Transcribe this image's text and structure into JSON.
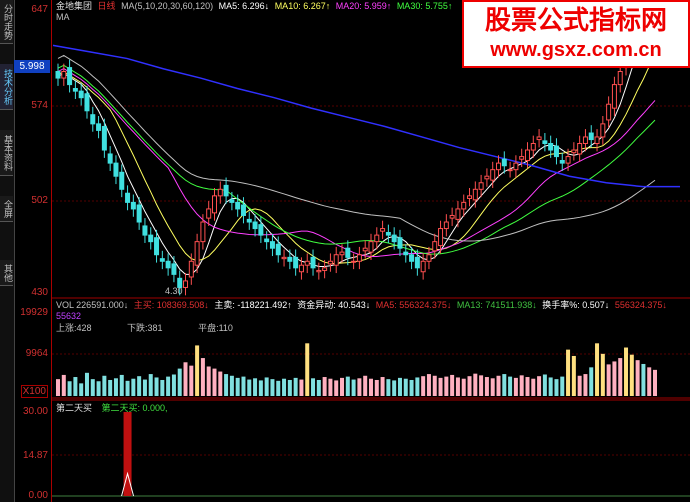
{
  "sidebar": {
    "tabs": [
      "分时走势",
      "技术分析",
      "基本资料",
      "全屏",
      "其他"
    ],
    "active": 1
  },
  "header": {
    "stock": "金地集团",
    "period": "日线",
    "ma_label": "MA(5,10,20,30,60,120)",
    "ma5": "MA5: 6.296↓",
    "ma10": "MA10: 6.267↑",
    "ma20": "MA20: 5.959↑",
    "ma30": "MA30: 5.755↑",
    "ma60_partial": "MA"
  },
  "price_axis": {
    "labels": [
      "647",
      "574",
      "502",
      "430"
    ],
    "current": "5.998",
    "low_mark": "4.30"
  },
  "volume_header": {
    "vol": "VOL 226591.000↓",
    "zhumai": "主买: 108369.508↓",
    "zhumai2": "主卖: -118221.492↑",
    "zijin": "资金异动: 40.543↓",
    "mav5": "MA5: 556324.375↓",
    "mav13": "MA13: 741511.938↓",
    "huanshou": "换手率%: 0.507↓",
    "extra1": "556324.375↓",
    "extra2": "55632",
    "up": "上涨:428",
    "down": "下跌:381",
    "flat": "平盘:110"
  },
  "volume_axis": {
    "labels": [
      "19929",
      "9964"
    ],
    "unit": "X100"
  },
  "indicator": {
    "name": "第二天买",
    "value": "第二天买: 0.000,",
    "labels": [
      "30.00",
      "14.87",
      "0.00"
    ]
  },
  "watermark": {
    "title": "股票公式指标网",
    "url": "www.gsxz.com.cn"
  },
  "colors": {
    "up": "#ff5050",
    "down": "#40e0e0",
    "ma5": "#ffffff",
    "ma10": "#ffff60",
    "ma20": "#ff40ff",
    "ma30": "#40ff40",
    "ma60": "#c0c0c0",
    "ma120": "#3030ff",
    "axis": "#a00000"
  },
  "chart_data": {
    "type": "candlestick",
    "ylim": [
      4.3,
      6.47
    ],
    "closes": [
      5.95,
      6.0,
      5.9,
      5.85,
      5.8,
      5.7,
      5.6,
      5.55,
      5.4,
      5.3,
      5.2,
      5.1,
      5.0,
      4.95,
      4.85,
      4.75,
      4.7,
      4.6,
      4.55,
      4.5,
      4.45,
      4.35,
      4.4,
      4.55,
      4.7,
      4.85,
      4.95,
      5.05,
      5.1,
      5.05,
      5.0,
      4.95,
      4.9,
      4.85,
      4.8,
      4.75,
      4.7,
      4.65,
      4.6,
      4.58,
      4.55,
      4.5,
      4.52,
      4.55,
      4.5,
      4.48,
      4.5,
      4.55,
      4.6,
      4.62,
      4.58,
      4.55,
      4.6,
      4.65,
      4.7,
      4.75,
      4.8,
      4.75,
      4.7,
      4.65,
      4.6,
      4.55,
      4.5,
      4.55,
      4.6,
      4.7,
      4.8,
      4.85,
      4.9,
      4.95,
      5.0,
      5.05,
      5.1,
      5.15,
      5.2,
      5.25,
      5.3,
      5.28,
      5.25,
      5.3,
      5.35,
      5.4,
      5.45,
      5.5,
      5.45,
      5.4,
      5.35,
      5.3,
      5.35,
      5.4,
      5.45,
      5.5,
      5.48,
      5.5,
      5.6,
      5.75,
      5.9,
      6.0,
      6.15,
      6.3,
      6.4,
      6.35,
      6.45,
      6.5
    ],
    "ma120": [
      6.2,
      6.15,
      6.1,
      6.02,
      5.95,
      5.87,
      5.8,
      5.72,
      5.65,
      5.58,
      5.5,
      5.42,
      5.35,
      5.28,
      5.2,
      5.15,
      5.12,
      5.12
    ],
    "volume_ylim": [
      0,
      19929
    ],
    "volumes": [
      4000,
      5000,
      3500,
      4500,
      3000,
      5500,
      4000,
      3500,
      4800,
      3800,
      4200,
      5000,
      3600,
      4100,
      4700,
      3900,
      5200,
      4400,
      3800,
      4600,
      5100,
      6500,
      8000,
      7200,
      12000,
      9000,
      7000,
      6500,
      5800,
      5200,
      4800,
      4300,
      4600,
      3900,
      4200,
      3700,
      4400,
      4000,
      3600,
      4100,
      3800,
      4300,
      3900,
      12500,
      4200,
      3800,
      4500,
      4100,
      3700,
      4300,
      4600,
      3900,
      4200,
      4800,
      4100,
      3800,
      4500,
      4000,
      3700,
      4300,
      4100,
      3800,
      4400,
      4700,
      5200,
      4800,
      4300,
      4600,
      5000,
      4400,
      4100,
      4700,
      5300,
      4900,
      4500,
      4200,
      4800,
      5200,
      4600,
      4300,
      4900,
      4500,
      4100,
      4700,
      5100,
      4400,
      4000,
      4600,
      11000,
      9500,
      4800,
      5200,
      6800,
      12500,
      10000,
      7500,
      8200,
      9000,
      11500,
      9800,
      8500,
      7600,
      6800,
      6200,
      5800
    ],
    "indicator_ylim": [
      0,
      30
    ],
    "indicator_spike_index": 12,
    "indicator_spike_value": 30
  }
}
